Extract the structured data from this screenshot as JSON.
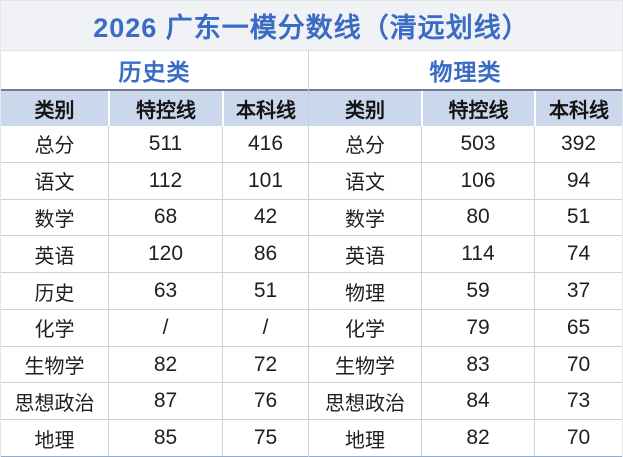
{
  "title": {
    "text": "2026 广东一模分数线（清远划线）"
  },
  "colors": {
    "title_text": "#3A6CC6",
    "section_text": "#3A6CC6",
    "header_bg": "#CBD8EC",
    "header_text": "#141414",
    "cell_text": "#1F1F1F",
    "grid_border": "#C9D2E1",
    "header_top_border": "#6F7D94",
    "table_bottom_border": "#97ACCB",
    "title_bg": "#F1F2F6"
  },
  "tables": [
    {
      "section_label": "历史类",
      "headers": [
        "类别",
        "特控线",
        "本科线"
      ],
      "rows": [
        [
          "总分",
          "511",
          "416"
        ],
        [
          "语文",
          "112",
          "101"
        ],
        [
          "数学",
          "68",
          "42"
        ],
        [
          "英语",
          "120",
          "86"
        ],
        [
          "历史",
          "63",
          "51"
        ],
        [
          "化学",
          "/",
          "/"
        ],
        [
          "生物学",
          "82",
          "72"
        ],
        [
          "思想政治",
          "87",
          "76"
        ],
        [
          "地理",
          "85",
          "75"
        ]
      ]
    },
    {
      "section_label": "物理类",
      "headers": [
        "类别",
        "特控线",
        "本科线"
      ],
      "rows": [
        [
          "总分",
          "503",
          "392"
        ],
        [
          "语文",
          "106",
          "94"
        ],
        [
          "数学",
          "80",
          "51"
        ],
        [
          "英语",
          "114",
          "74"
        ],
        [
          "物理",
          "59",
          "37"
        ],
        [
          "化学",
          "79",
          "65"
        ],
        [
          "生物学",
          "83",
          "70"
        ],
        [
          "思想政治",
          "84",
          "73"
        ],
        [
          "地理",
          "82",
          "70"
        ]
      ]
    }
  ],
  "chart_data": {
    "type": "table",
    "title": "2026 广东一模分数线（清远划线）",
    "tables": [
      {
        "section": "历史类",
        "columns": [
          "类别",
          "特控线",
          "本科线"
        ],
        "rows": [
          [
            "总分",
            511,
            416
          ],
          [
            "语文",
            112,
            101
          ],
          [
            "数学",
            68,
            42
          ],
          [
            "英语",
            120,
            86
          ],
          [
            "历史",
            63,
            51
          ],
          [
            "化学",
            "/",
            "/"
          ],
          [
            "生物学",
            82,
            72
          ],
          [
            "思想政治",
            87,
            76
          ],
          [
            "地理",
            85,
            75
          ]
        ]
      },
      {
        "section": "物理类",
        "columns": [
          "类别",
          "特控线",
          "本科线"
        ],
        "rows": [
          [
            "总分",
            503,
            392
          ],
          [
            "语文",
            106,
            94
          ],
          [
            "数学",
            80,
            51
          ],
          [
            "英语",
            114,
            74
          ],
          [
            "物理",
            59,
            37
          ],
          [
            "化学",
            79,
            65
          ],
          [
            "生物学",
            83,
            70
          ],
          [
            "思想政治",
            84,
            73
          ],
          [
            "地理",
            82,
            70
          ]
        ]
      }
    ]
  }
}
